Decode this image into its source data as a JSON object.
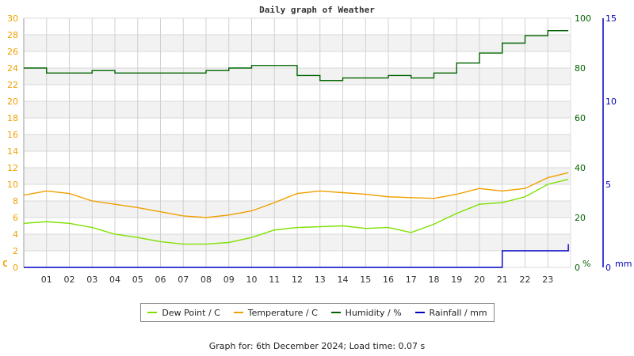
{
  "header": {
    "title": "Daily graph of Weather"
  },
  "footer": {
    "text": "Graph for: 6th December 2024; Load time: 0.07 s"
  },
  "legend": [
    {
      "label": "Dew Point / C",
      "color": "#7fe000"
    },
    {
      "label": "Temperature / C",
      "color": "#f0a000"
    },
    {
      "label": "Humidity / %",
      "color": "#006400"
    },
    {
      "label": "Rainfall / mm",
      "color": "#0000c0"
    }
  ],
  "chart_data": {
    "type": "line",
    "title": "Daily graph of Weather",
    "xlabel": "",
    "x_ticks": [
      "01",
      "02",
      "03",
      "04",
      "05",
      "06",
      "07",
      "08",
      "09",
      "10",
      "11",
      "12",
      "13",
      "14",
      "15",
      "16",
      "17",
      "18",
      "19",
      "20",
      "21",
      "22",
      "23"
    ],
    "x": [
      0,
      1,
      2,
      3,
      4,
      5,
      6,
      7,
      8,
      9,
      10,
      11,
      12,
      13,
      14,
      15,
      16,
      17,
      18,
      19,
      20,
      21,
      22,
      23,
      23.9
    ],
    "axes": {
      "left": {
        "label": "C",
        "ticks": [
          0,
          2,
          4,
          6,
          8,
          10,
          12,
          14,
          16,
          18,
          20,
          22,
          24,
          26,
          28,
          30
        ],
        "range": [
          0,
          30
        ],
        "color": "#f0a000"
      },
      "right1": {
        "label": "%",
        "ticks": [
          0,
          20,
          40,
          60,
          80,
          100
        ],
        "range": [
          0,
          100
        ],
        "color": "#006400"
      },
      "right2": {
        "label": "mm",
        "ticks": [
          0,
          5,
          10,
          15
        ],
        "range": [
          0,
          15
        ],
        "color": "#0000c0"
      }
    },
    "series": [
      {
        "name": "Dew Point / C",
        "axis": "left",
        "color": "#7fe000",
        "values": [
          5.3,
          5.5,
          5.3,
          4.8,
          4.0,
          3.6,
          3.1,
          2.8,
          2.8,
          3.0,
          3.6,
          4.5,
          4.8,
          4.9,
          5.0,
          4.7,
          4.8,
          4.2,
          5.2,
          6.5,
          7.6,
          7.8,
          8.5,
          10.0,
          10.6
        ]
      },
      {
        "name": "Temperature / C",
        "axis": "left",
        "color": "#f0a000",
        "values": [
          8.7,
          9.2,
          8.9,
          8.0,
          7.6,
          7.2,
          6.7,
          6.2,
          6.0,
          6.3,
          6.8,
          7.8,
          8.9,
          9.2,
          9.0,
          8.8,
          8.5,
          8.4,
          8.3,
          8.8,
          9.5,
          9.2,
          9.5,
          10.8,
          11.4
        ]
      },
      {
        "name": "Humidity / %",
        "axis": "right1",
        "color": "#006400",
        "values": [
          80,
          78,
          78,
          79,
          78,
          78,
          78,
          78,
          79,
          80,
          81,
          81,
          77,
          75,
          76,
          76,
          77,
          76,
          78,
          82,
          86,
          90,
          93,
          95,
          95
        ]
      },
      {
        "name": "Rainfall / mm",
        "axis": "right2",
        "color": "#0000c0",
        "values": [
          0,
          0,
          0,
          0,
          0,
          0,
          0,
          0,
          0,
          0,
          0,
          0,
          0,
          0,
          0,
          0,
          0,
          0,
          0,
          0,
          0,
          1.0,
          1.0,
          1.0,
          1.4
        ]
      }
    ],
    "grid": true,
    "legend_position": "bottom"
  }
}
